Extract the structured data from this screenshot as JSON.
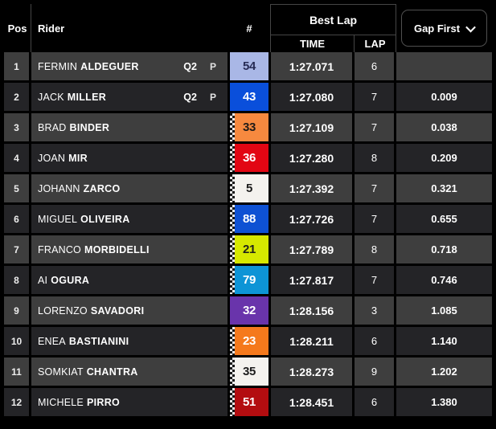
{
  "header": {
    "pos_label": "Pos",
    "rider_label": "Rider",
    "number_label": "#",
    "best_lap_label": "Best Lap",
    "time_label": "TIME",
    "lap_label": "LAP",
    "gap_filter": {
      "label": "Gap First"
    }
  },
  "colors": {
    "background": "#000000",
    "row_odd": "#3e3e3e",
    "row_even": "#242427",
    "header_divider": "#454545",
    "text_primary": "#ffffff"
  },
  "rows": [
    {
      "pos": "1",
      "first_name": "FERMIN",
      "last_name": "ALDEGUER",
      "qualifying": "Q2",
      "pit": true,
      "number": "54",
      "plate_bg": "#a9b7e6",
      "plate_text": "#272c55",
      "checker": false,
      "time": "1:27.071",
      "lap": "6",
      "gap": ""
    },
    {
      "pos": "2",
      "first_name": "JACK",
      "last_name": "MILLER",
      "qualifying": "Q2",
      "pit": true,
      "number": "43",
      "plate_bg": "#0a4fdb",
      "plate_text": "#ffffff",
      "checker": false,
      "time": "1:27.080",
      "lap": "7",
      "gap": "0.009"
    },
    {
      "pos": "3",
      "first_name": "BRAD",
      "last_name": "BINDER",
      "qualifying": "",
      "pit": false,
      "number": "33",
      "plate_bg": "#f6893f",
      "plate_text": "#1f1b18",
      "checker": true,
      "time": "1:27.109",
      "lap": "7",
      "gap": "0.038"
    },
    {
      "pos": "4",
      "first_name": "JOAN",
      "last_name": "MIR",
      "qualifying": "",
      "pit": false,
      "number": "36",
      "plate_bg": "#e20613",
      "plate_text": "#ffffff",
      "checker": true,
      "time": "1:27.280",
      "lap": "8",
      "gap": "0.209"
    },
    {
      "pos": "5",
      "first_name": "JOHANN",
      "last_name": "ZARCO",
      "qualifying": "",
      "pit": false,
      "number": "5",
      "plate_bg": "#f4f2ee",
      "plate_text": "#1c1c1c",
      "checker": true,
      "time": "1:27.392",
      "lap": "7",
      "gap": "0.321"
    },
    {
      "pos": "6",
      "first_name": "MIGUEL",
      "last_name": "OLIVEIRA",
      "qualifying": "",
      "pit": false,
      "number": "88",
      "plate_bg": "#0e51d3",
      "plate_text": "#ffffff",
      "checker": true,
      "time": "1:27.726",
      "lap": "7",
      "gap": "0.655"
    },
    {
      "pos": "7",
      "first_name": "FRANCO",
      "last_name": "MORBIDELLI",
      "qualifying": "",
      "pit": false,
      "number": "21",
      "plate_bg": "#d6e800",
      "plate_text": "#20211c",
      "checker": true,
      "time": "1:27.789",
      "lap": "8",
      "gap": "0.718"
    },
    {
      "pos": "8",
      "first_name": "AI",
      "last_name": "OGURA",
      "qualifying": "",
      "pit": false,
      "number": "79",
      "plate_bg": "#0d94d6",
      "plate_text": "#ffffff",
      "checker": true,
      "time": "1:27.817",
      "lap": "7",
      "gap": "0.746"
    },
    {
      "pos": "9",
      "first_name": "LORENZO",
      "last_name": "SAVADORI",
      "qualifying": "",
      "pit": false,
      "number": "32",
      "plate_bg": "#6934ab",
      "plate_text": "#ffffff",
      "checker": false,
      "time": "1:28.156",
      "lap": "3",
      "gap": "1.085"
    },
    {
      "pos": "10",
      "first_name": "ENEA",
      "last_name": "BASTIANINI",
      "qualifying": "",
      "pit": false,
      "number": "23",
      "plate_bg": "#f5791c",
      "plate_text": "#ffffff",
      "checker": true,
      "time": "1:28.211",
      "lap": "6",
      "gap": "1.140"
    },
    {
      "pos": "11",
      "first_name": "SOMKIAT",
      "last_name": "CHANTRA",
      "qualifying": "",
      "pit": false,
      "number": "35",
      "plate_bg": "#f4f2ee",
      "plate_text": "#1c1c1c",
      "checker": true,
      "time": "1:28.273",
      "lap": "9",
      "gap": "1.202"
    },
    {
      "pos": "12",
      "first_name": "MICHELE",
      "last_name": "PIRRO",
      "qualifying": "",
      "pit": false,
      "number": "51",
      "plate_bg": "#b30d10",
      "plate_text": "#ffffff",
      "checker": true,
      "time": "1:28.451",
      "lap": "6",
      "gap": "1.380"
    }
  ]
}
